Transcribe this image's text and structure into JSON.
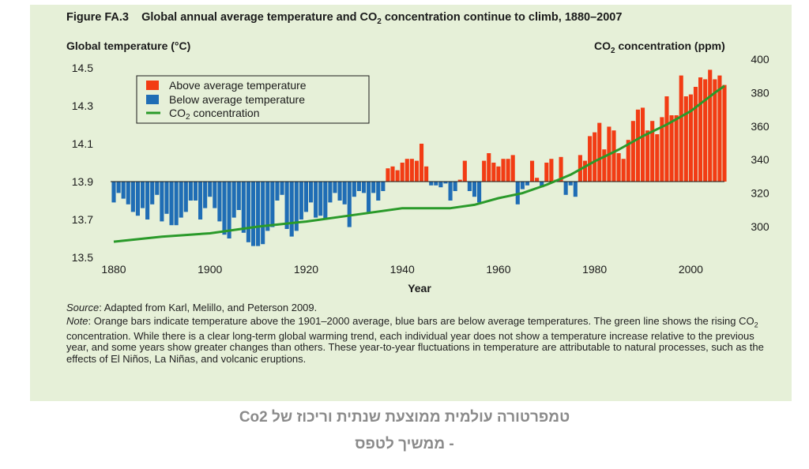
{
  "figure": {
    "label": "Figure FA.3",
    "title": "Global annual average temperature and CO",
    "title_sub": "2",
    "title_end": " concentration continue to climb, 1880–2007"
  },
  "axes": {
    "left_title": "Global temperature (°C)",
    "right_title": "CO",
    "right_title_sub": "2",
    "right_title_end": " concentration (ppm)",
    "x_label": "Year"
  },
  "legend": {
    "above": "Above average temperature",
    "below": "Below average temperature",
    "co2": "CO",
    "co2_sub": "2",
    "co2_end": " concentration"
  },
  "colors": {
    "above": "#f23c14",
    "below": "#1f6db5",
    "co2": "#2a9a2a",
    "panel": "#e6f0d8"
  },
  "chart_data": {
    "type": "bar",
    "title": "Global annual average temperature and CO2 concentration continue to climb, 1880–2007",
    "xlabel": "Year",
    "ylabel": "Global temperature (°C)",
    "y2label": "CO2 concentration (ppm)",
    "xlim": [
      1880,
      2007
    ],
    "ylim": [
      13.5,
      14.5
    ],
    "y2lim": [
      280,
      400
    ],
    "baseline": 13.9,
    "x_ticks": [
      1880,
      1900,
      1920,
      1940,
      1960,
      1980,
      2000
    ],
    "y_ticks": [
      13.5,
      13.7,
      13.9,
      14.1,
      14.3,
      14.5
    ],
    "y_tick_labels": [
      "13.5",
      "13.7",
      "13.9",
      "14.1",
      "14.3",
      "14.5"
    ],
    "y2_ticks": [
      300,
      320,
      340,
      360,
      380,
      400
    ],
    "series": [
      {
        "name": "Global temperature",
        "x_start": 1880,
        "values": [
          13.79,
          13.84,
          13.81,
          13.78,
          13.74,
          13.72,
          13.76,
          13.7,
          13.78,
          13.83,
          13.69,
          13.73,
          13.67,
          13.67,
          13.71,
          13.74,
          13.8,
          13.8,
          13.7,
          13.76,
          13.82,
          13.76,
          13.69,
          13.62,
          13.6,
          13.71,
          13.75,
          13.63,
          13.58,
          13.56,
          13.56,
          13.57,
          13.64,
          13.66,
          13.8,
          13.83,
          13.65,
          13.61,
          13.64,
          13.7,
          13.74,
          13.79,
          13.71,
          13.72,
          13.7,
          13.79,
          13.84,
          13.8,
          13.78,
          13.66,
          13.82,
          13.85,
          13.84,
          13.74,
          13.84,
          13.8,
          13.85,
          13.97,
          13.98,
          13.96,
          14.0,
          14.02,
          14.02,
          14.01,
          14.1,
          13.98,
          13.88,
          13.88,
          13.87,
          13.89,
          13.8,
          13.85,
          13.91,
          14.01,
          13.85,
          13.82,
          13.79,
          14.01,
          14.05,
          14.0,
          13.98,
          14.02,
          14.02,
          14.04,
          13.78,
          13.86,
          13.88,
          14.01,
          13.92,
          13.87,
          14.0,
          14.02,
          13.91,
          14.03,
          13.83,
          13.88,
          13.82,
          14.04,
          14.01,
          14.14,
          14.16,
          14.21,
          14.07,
          14.19,
          14.17,
          14.05,
          14.02,
          14.12,
          14.22,
          14.28,
          14.29,
          14.17,
          14.22,
          14.15,
          14.24,
          14.35,
          14.25,
          14.25,
          14.46,
          14.35,
          14.36,
          14.4,
          14.45,
          14.44,
          14.49,
          14.44,
          14.46,
          14.41
        ]
      },
      {
        "name": "CO2 concentration",
        "x": [
          1880,
          1890,
          1900,
          1910,
          1920,
          1930,
          1940,
          1950,
          1955,
          1960,
          1965,
          1970,
          1975,
          1980,
          1985,
          1990,
          1995,
          2000,
          2005,
          2007
        ],
        "values": [
          291,
          294,
          296,
          300,
          303,
          307,
          311,
          311,
          313,
          317,
          320,
          325,
          331,
          339,
          346,
          354,
          361,
          369,
          380,
          384
        ]
      }
    ]
  },
  "footnote": {
    "source_label": "Source",
    "source_text": ": Adapted from Karl, Melillo, and Peterson 2009.",
    "note_label": "Note",
    "note_text": ": Orange bars indicate temperature above the 1901–2000 average, blue bars are below average temperatures. The green line shows the rising CO",
    "note_sub": "2",
    "note_text_end": " concentration. While there is a clear long-term global warming trend, each individual year does not show a temperature increase relative to the previous year, and some years show greater changes than others. These year-to-year fluctuations in temperature are attributable to natural processes, such as the effects of El Niños, La Niñas, and volcanic eruptions."
  },
  "caption": {
    "line1": "טמפרטורה עולמית ממוצעת שנתית וריכוז של Co2",
    "line2": "- ממשיך לטפס"
  }
}
